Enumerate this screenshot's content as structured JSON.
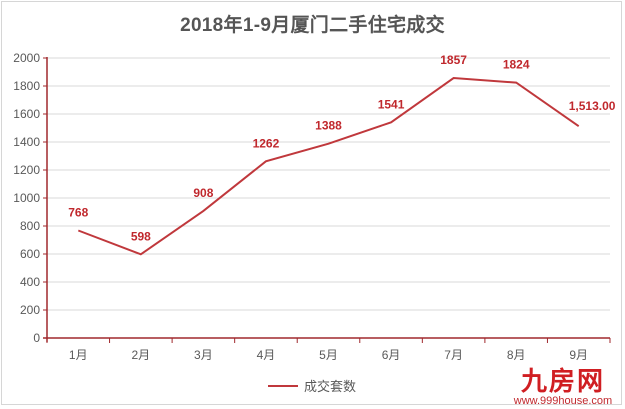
{
  "chart_data": {
    "type": "line",
    "title": "2018年1-9月厦门二手住宅成交",
    "categories": [
      "1月",
      "2月",
      "3月",
      "4月",
      "5月",
      "6月",
      "7月",
      "8月",
      "9月"
    ],
    "series": [
      {
        "name": "成交套数",
        "values": [
          768,
          598,
          908,
          1262,
          1388,
          1541,
          1857,
          1824,
          1513
        ],
        "data_labels": [
          "768",
          "598",
          "908",
          "1262",
          "1388",
          "1541",
          "1857",
          "1824",
          "1,513.00"
        ],
        "color": "#c0383c"
      }
    ],
    "xlabel": "",
    "ylabel": "",
    "ylim": [
      0,
      2000
    ],
    "yticks": [
      0,
      200,
      400,
      600,
      800,
      1000,
      1200,
      1400,
      1600,
      1800,
      2000
    ],
    "grid": true,
    "legend_position": "bottom"
  },
  "legend": {
    "label": "成交套数"
  },
  "watermark": {
    "logo": "九房网",
    "url": "www.999house.com"
  },
  "colors": {
    "line": "#c0383c",
    "axis": "#a0282d",
    "label": "#c0282d",
    "grid": "#d9d9d9"
  }
}
